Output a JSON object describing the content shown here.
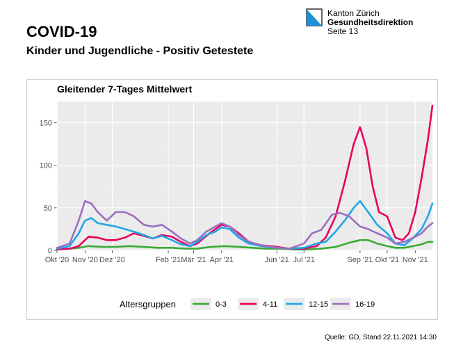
{
  "header": {
    "title": "COVID-19",
    "subtitle": "Kinder und Jugendliche - Positiv Getestete",
    "org_line1": "Kanton Zürich",
    "org_line2": "Gesundheitsdirektion",
    "org_line3": "Seite 13"
  },
  "footer": {
    "source": "Quelle: GD, Stand 22.11.2021 14:30"
  },
  "colors": {
    "logo_blue": "#1f8fd6",
    "panel_bg": "#ebebeb"
  },
  "chart_data": {
    "type": "line",
    "title": "Gleitender 7-Tages Mittelwert",
    "xlabel": "",
    "ylabel": "",
    "xlim": [
      "2020-10-01",
      "2021-11-20"
    ],
    "ylim": [
      0,
      175
    ],
    "y_ticks": [
      0,
      50,
      100,
      150
    ],
    "x_ticks": [
      {
        "date": "2020-10-01",
        "label": "Okt '20"
      },
      {
        "date": "2020-11-01",
        "label": "Nov '20"
      },
      {
        "date": "2020-12-01",
        "label": "Dez '20"
      },
      {
        "date": "2021-02-01",
        "label": "Feb '21"
      },
      {
        "date": "2021-03-01",
        "label": "Mär '21"
      },
      {
        "date": "2021-04-01",
        "label": "Apr '21"
      },
      {
        "date": "2021-06-01",
        "label": "Jun '21"
      },
      {
        "date": "2021-07-01",
        "label": "Jul '21"
      },
      {
        "date": "2021-09-01",
        "label": "Sep '21"
      },
      {
        "date": "2021-10-01",
        "label": "Okt '21"
      },
      {
        "date": "2021-11-01",
        "label": "Nov '21"
      }
    ],
    "grid": true,
    "legend": {
      "title": "Altersgruppen",
      "position": "bottom"
    },
    "series": [
      {
        "name": "0-3",
        "color": "#3aaa35",
        "points": [
          [
            "2020-10-01",
            1
          ],
          [
            "2020-10-15",
            2
          ],
          [
            "2020-10-25",
            3
          ],
          [
            "2020-11-05",
            5
          ],
          [
            "2020-11-20",
            4
          ],
          [
            "2020-12-05",
            4
          ],
          [
            "2020-12-20",
            5
          ],
          [
            "2021-01-05",
            4
          ],
          [
            "2021-01-20",
            3
          ],
          [
            "2021-02-05",
            3
          ],
          [
            "2021-02-20",
            2
          ],
          [
            "2021-03-05",
            2
          ],
          [
            "2021-03-20",
            4
          ],
          [
            "2021-04-05",
            5
          ],
          [
            "2021-04-20",
            4
          ],
          [
            "2021-05-05",
            3
          ],
          [
            "2021-05-20",
            2
          ],
          [
            "2021-06-05",
            2
          ],
          [
            "2021-06-20",
            1
          ],
          [
            "2021-07-05",
            1
          ],
          [
            "2021-07-20",
            2
          ],
          [
            "2021-08-05",
            4
          ],
          [
            "2021-08-20",
            9
          ],
          [
            "2021-09-01",
            12
          ],
          [
            "2021-09-10",
            12
          ],
          [
            "2021-09-20",
            8
          ],
          [
            "2021-10-01",
            5
          ],
          [
            "2021-10-10",
            3
          ],
          [
            "2021-10-20",
            3
          ],
          [
            "2021-10-30",
            5
          ],
          [
            "2021-11-08",
            7
          ],
          [
            "2021-11-15",
            10
          ],
          [
            "2021-11-20",
            10
          ]
        ]
      },
      {
        "name": "4-11",
        "color": "#e6005c",
        "points": [
          [
            "2020-10-01",
            1
          ],
          [
            "2020-10-15",
            2
          ],
          [
            "2020-10-25",
            5
          ],
          [
            "2020-11-01",
            12
          ],
          [
            "2020-11-05",
            16
          ],
          [
            "2020-11-15",
            15
          ],
          [
            "2020-11-25",
            12
          ],
          [
            "2020-12-05",
            12
          ],
          [
            "2020-12-15",
            15
          ],
          [
            "2020-12-25",
            20
          ],
          [
            "2021-01-05",
            17
          ],
          [
            "2021-01-15",
            14
          ],
          [
            "2021-01-25",
            18
          ],
          [
            "2021-02-05",
            16
          ],
          [
            "2021-02-15",
            10
          ],
          [
            "2021-02-25",
            5
          ],
          [
            "2021-03-05",
            8
          ],
          [
            "2021-03-15",
            17
          ],
          [
            "2021-03-25",
            25
          ],
          [
            "2021-04-01",
            30
          ],
          [
            "2021-04-10",
            28
          ],
          [
            "2021-04-20",
            20
          ],
          [
            "2021-05-01",
            10
          ],
          [
            "2021-05-15",
            6
          ],
          [
            "2021-06-01",
            4
          ],
          [
            "2021-06-15",
            2
          ],
          [
            "2021-07-01",
            2
          ],
          [
            "2021-07-15",
            5
          ],
          [
            "2021-07-25",
            15
          ],
          [
            "2021-08-05",
            40
          ],
          [
            "2021-08-15",
            80
          ],
          [
            "2021-08-25",
            125
          ],
          [
            "2021-09-01",
            145
          ],
          [
            "2021-09-08",
            120
          ],
          [
            "2021-09-15",
            75
          ],
          [
            "2021-09-22",
            45
          ],
          [
            "2021-10-01",
            40
          ],
          [
            "2021-10-10",
            15
          ],
          [
            "2021-10-18",
            12
          ],
          [
            "2021-10-25",
            20
          ],
          [
            "2021-11-01",
            45
          ],
          [
            "2021-11-08",
            85
          ],
          [
            "2021-11-15",
            130
          ],
          [
            "2021-11-20",
            170
          ]
        ]
      },
      {
        "name": "12-15",
        "color": "#1ea7e8",
        "points": [
          [
            "2020-10-01",
            2
          ],
          [
            "2020-10-15",
            5
          ],
          [
            "2020-10-25",
            20
          ],
          [
            "2020-11-01",
            35
          ],
          [
            "2020-11-08",
            38
          ],
          [
            "2020-11-15",
            32
          ],
          [
            "2020-11-25",
            30
          ],
          [
            "2020-12-05",
            28
          ],
          [
            "2020-12-15",
            25
          ],
          [
            "2020-12-25",
            22
          ],
          [
            "2021-01-05",
            18
          ],
          [
            "2021-01-15",
            14
          ],
          [
            "2021-01-25",
            17
          ],
          [
            "2021-02-05",
            12
          ],
          [
            "2021-02-15",
            7
          ],
          [
            "2021-02-25",
            5
          ],
          [
            "2021-03-05",
            10
          ],
          [
            "2021-03-15",
            18
          ],
          [
            "2021-03-25",
            22
          ],
          [
            "2021-04-01",
            27
          ],
          [
            "2021-04-10",
            25
          ],
          [
            "2021-04-20",
            15
          ],
          [
            "2021-05-01",
            8
          ],
          [
            "2021-05-15",
            5
          ],
          [
            "2021-06-01",
            3
          ],
          [
            "2021-06-15",
            2
          ],
          [
            "2021-07-01",
            3
          ],
          [
            "2021-07-15",
            8
          ],
          [
            "2021-07-25",
            10
          ],
          [
            "2021-08-05",
            22
          ],
          [
            "2021-08-15",
            35
          ],
          [
            "2021-08-25",
            50
          ],
          [
            "2021-09-01",
            58
          ],
          [
            "2021-09-10",
            45
          ],
          [
            "2021-09-20",
            30
          ],
          [
            "2021-10-01",
            20
          ],
          [
            "2021-10-10",
            8
          ],
          [
            "2021-10-20",
            6
          ],
          [
            "2021-10-30",
            15
          ],
          [
            "2021-11-08",
            25
          ],
          [
            "2021-11-15",
            40
          ],
          [
            "2021-11-20",
            55
          ]
        ]
      },
      {
        "name": "16-19",
        "color": "#9b6fbf",
        "points": [
          [
            "2020-10-01",
            3
          ],
          [
            "2020-10-15",
            8
          ],
          [
            "2020-10-25",
            35
          ],
          [
            "2020-11-01",
            58
          ],
          [
            "2020-11-08",
            55
          ],
          [
            "2020-11-15",
            45
          ],
          [
            "2020-11-25",
            35
          ],
          [
            "2020-12-05",
            45
          ],
          [
            "2020-12-15",
            45
          ],
          [
            "2020-12-25",
            40
          ],
          [
            "2021-01-05",
            30
          ],
          [
            "2021-01-15",
            28
          ],
          [
            "2021-01-25",
            30
          ],
          [
            "2021-02-05",
            22
          ],
          [
            "2021-02-15",
            14
          ],
          [
            "2021-02-25",
            8
          ],
          [
            "2021-03-05",
            12
          ],
          [
            "2021-03-15",
            22
          ],
          [
            "2021-03-25",
            28
          ],
          [
            "2021-04-01",
            32
          ],
          [
            "2021-04-10",
            28
          ],
          [
            "2021-04-20",
            18
          ],
          [
            "2021-05-01",
            10
          ],
          [
            "2021-05-15",
            6
          ],
          [
            "2021-06-01",
            3
          ],
          [
            "2021-06-15",
            2
          ],
          [
            "2021-07-01",
            8
          ],
          [
            "2021-07-10",
            20
          ],
          [
            "2021-07-20",
            24
          ],
          [
            "2021-08-01",
            42
          ],
          [
            "2021-08-10",
            44
          ],
          [
            "2021-08-20",
            40
          ],
          [
            "2021-09-01",
            28
          ],
          [
            "2021-09-10",
            25
          ],
          [
            "2021-09-20",
            20
          ],
          [
            "2021-10-01",
            15
          ],
          [
            "2021-10-10",
            8
          ],
          [
            "2021-10-20",
            10
          ],
          [
            "2021-10-30",
            15
          ],
          [
            "2021-11-08",
            20
          ],
          [
            "2021-11-15",
            28
          ],
          [
            "2021-11-20",
            32
          ]
        ]
      }
    ]
  }
}
